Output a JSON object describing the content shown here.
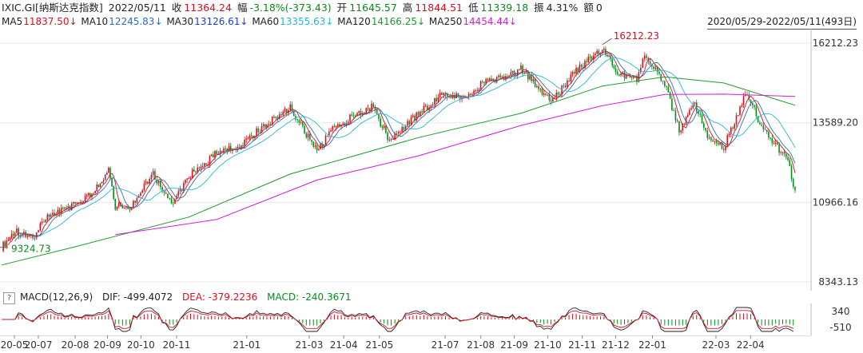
{
  "header": {
    "symbol": "IXIC.GI[纳斯达克指数]",
    "date": "2022/05/11",
    "close_label": "收",
    "close_value": "11364.24",
    "change_label": "幅",
    "change_value": "-3.18%(-373.43)",
    "open_label": "开",
    "open_value": "11645.57",
    "high_label": "高",
    "high_value": "11844.51",
    "low_label": "低",
    "low_value": "11339.18",
    "amp_label": "振",
    "amp_value": "4.31%",
    "volume_label": "额",
    "volume_value": "0"
  },
  "ma_legend": [
    {
      "label": "MA5",
      "value": "11837.50↓",
      "color": "#d5101e"
    },
    {
      "label": "MA10",
      "value": "12245.83↓",
      "color": "#2f6fb2"
    },
    {
      "label": "MA30",
      "value": "13126.61↓",
      "color": "#1a3fcf"
    },
    {
      "label": "MA60",
      "value": "13355.63↓",
      "color": "#27b6d6"
    },
    {
      "label": "MA120",
      "value": "14166.25↓",
      "color": "#1e9a2a"
    },
    {
      "label": "MA250",
      "value": "14454.44↓",
      "color": "#d21ad8"
    }
  ],
  "range_text": "2020/05/29-2022/05/11(493日)",
  "macd": {
    "help": "?",
    "title": "MACD(12,26,9)",
    "dif_label": "DIF: -499.4072",
    "dea_label": "DEA: -379.2236",
    "macd_label": "MACD: -240.3671",
    "dif_color": "#222222",
    "dea_color": "#d5101e",
    "macd_color": "#0a8a1f",
    "y_ticks": [
      "340",
      "-510"
    ]
  },
  "chart_data": {
    "type": "candlestick",
    "title": "IXIC.GI[纳斯达克指数]",
    "y_ticks": [
      "16212.23",
      "13589.20",
      "10966.16",
      "8343.13"
    ],
    "ylim": [
      8343.13,
      16212.23
    ],
    "x_tick_labels": [
      "20-05",
      "20-07",
      "20-08",
      "20-09",
      "20-10",
      "20-11",
      "21-01",
      "21-03",
      "21-04",
      "21-05",
      "21-07",
      "21-08",
      "21-09",
      "21-10",
      "21-11",
      "21-12",
      "22-01",
      "22-03",
      "22-04"
    ],
    "annotations": [
      {
        "text": "16212.23",
        "kind": "max",
        "date": "21-11"
      },
      {
        "text": "9324.73",
        "kind": "min",
        "date": "20-05"
      }
    ],
    "price_series": {
      "name": "close",
      "points": [
        [
          "20-05-29",
          9490
        ],
        [
          "20-06-10",
          10020
        ],
        [
          "20-06-26",
          9760
        ],
        [
          "20-07-06",
          10400
        ],
        [
          "20-07-20",
          10700
        ],
        [
          "20-08-03",
          10900
        ],
        [
          "20-08-18",
          11200
        ],
        [
          "20-09-02",
          12000
        ],
        [
          "20-09-08",
          10850
        ],
        [
          "20-09-21",
          10780
        ],
        [
          "20-10-12",
          11880
        ],
        [
          "20-10-30",
          10910
        ],
        [
          "20-11-13",
          11830
        ],
        [
          "20-12-08",
          12580
        ],
        [
          "20-12-30",
          12870
        ],
        [
          "21-01-22",
          13540
        ],
        [
          "21-02-12",
          14100
        ],
        [
          "21-03-08",
          12610
        ],
        [
          "21-03-22",
          13380
        ],
        [
          "21-04-05",
          13700
        ],
        [
          "21-04-26",
          14140
        ],
        [
          "21-05-12",
          13030
        ],
        [
          "21-06-07",
          13880
        ],
        [
          "21-06-28",
          14500
        ],
        [
          "21-07-16",
          14430
        ],
        [
          "21-08-05",
          14900
        ],
        [
          "21-08-26",
          15100
        ],
        [
          "21-09-07",
          15370
        ],
        [
          "21-10-04",
          14250
        ],
        [
          "21-10-25",
          15230
        ],
        [
          "21-11-19",
          16060
        ],
        [
          "21-12-01",
          15300
        ],
        [
          "21-12-20",
          14980
        ],
        [
          "21-12-27",
          15870
        ],
        [
          "22-01-14",
          14900
        ],
        [
          "22-01-27",
          13350
        ],
        [
          "22-02-10",
          14190
        ],
        [
          "22-02-23",
          13040
        ],
        [
          "22-03-08",
          12800
        ],
        [
          "22-03-29",
          14620
        ],
        [
          "22-04-11",
          13410
        ],
        [
          "22-04-22",
          12840
        ],
        [
          "22-05-03",
          12560
        ],
        [
          "22-05-11",
          11364
        ]
      ]
    },
    "ma_series": [
      {
        "name": "MA120",
        "color": "#1e9a2a",
        "points": [
          [
            "20-05-29",
            8900
          ],
          [
            "20-08-03",
            9500
          ],
          [
            "20-11-13",
            10480
          ],
          [
            "21-02-12",
            11900
          ],
          [
            "21-06-07",
            13100
          ],
          [
            "21-09-07",
            13900
          ],
          [
            "21-11-19",
            14800
          ],
          [
            "22-01-14",
            15100
          ],
          [
            "22-03-08",
            14900
          ],
          [
            "22-05-11",
            14166
          ]
        ]
      },
      {
        "name": "MA250",
        "color": "#d21ad8",
        "points": [
          [
            "20-09-08",
            9900
          ],
          [
            "20-12-08",
            10400
          ],
          [
            "21-03-08",
            11700
          ],
          [
            "21-06-07",
            12500
          ],
          [
            "21-09-07",
            13500
          ],
          [
            "21-11-19",
            14150
          ],
          [
            "22-01-14",
            14520
          ],
          [
            "22-03-08",
            14530
          ],
          [
            "22-05-11",
            14454
          ]
        ]
      }
    ]
  }
}
